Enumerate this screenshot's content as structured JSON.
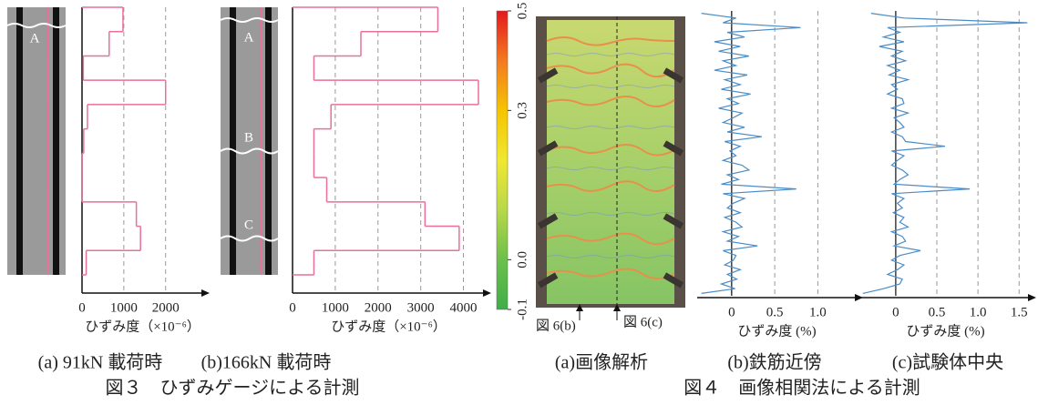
{
  "chart_data": [
    {
      "type": "step",
      "subtitle": "(a)  91kN 載荷時",
      "xlabel": "ひずみ度（×10⁻⁶）",
      "color": "#e8709a",
      "values": [
        980,
        650,
        30,
        2000,
        130,
        40,
        0,
        0,
        1300,
        1400,
        100
      ],
      "xlim": [
        0,
        2900
      ],
      "xticks": [
        0,
        1000,
        2000
      ],
      "grid": true
    },
    {
      "type": "step",
      "subtitle": "(b)166kN 載荷時",
      "xlabel": "ひずみ度（×10⁻⁶）",
      "color": "#e8709a",
      "values": [
        3400,
        1600,
        500,
        4350,
        900,
        500,
        500,
        800,
        3100,
        3900,
        500
      ],
      "xlim": [
        0,
        4500
      ],
      "xticks": [
        0,
        1000,
        2000,
        3000,
        4000
      ],
      "grid": true
    },
    {
      "type": "colorbar",
      "subtitle": "(a)画像解析",
      "colors": [
        "#e31a1c",
        "#f47a20",
        "#f5c400",
        "#f0e830",
        "#b8d84a",
        "#6cc04a",
        "#3fae49"
      ],
      "ylim": [
        -0.1,
        0.5
      ],
      "yticks": [
        -0.1,
        {
          "value": 0,
          "label": "0.0"
        },
        0.3,
        0.5
      ]
    },
    {
      "type": "profile",
      "subtitle": "(b)鉄筋近傍",
      "xlabel": "ひずみ度 (%)",
      "color": "#4a8cc8",
      "values": [
        -0.35,
        0.05,
        -0.1,
        0.8,
        -0.05,
        0.15,
        -0.2,
        0.1,
        -0.15,
        0.2,
        -0.1,
        0.05,
        -0.2,
        0.18,
        -0.08,
        0.1,
        -0.12,
        0.22,
        -0.05,
        0.08,
        -0.15,
        0.12,
        0.02,
        -0.1,
        0.15,
        -0.05,
        0.35,
        -0.08,
        0.1,
        -0.02,
        0.05,
        -0.1,
        0.12,
        0.2,
        -0.05,
        0.08,
        -0.12,
        0.75,
        -0.1,
        0.15,
        0.02,
        -0.05,
        0.1,
        -0.08,
        0.05,
        0.12,
        -0.1,
        0.08,
        -0.05,
        0.3,
        -0.1,
        0.05,
        0.02,
        -0.08,
        0.1,
        -0.05,
        0.06,
        -0.12,
        0.04,
        -0.35
      ],
      "xlim": [
        -0.4,
        1.45
      ],
      "xticks": [
        0,
        0.5,
        {
          "value": 1,
          "label": "1.0"
        }
      ],
      "grid": true
    },
    {
      "type": "profile",
      "subtitle": "(c)試験体中央",
      "xlabel": "ひずみ度 (%)",
      "color": "#4a8cc8",
      "values": [
        -0.3,
        0.1,
        1.6,
        -0.1,
        0.05,
        -0.15,
        0.1,
        -0.2,
        0.08,
        -0.05,
        0.12,
        -0.1,
        0.05,
        -0.08,
        0.15,
        -0.05,
        0.02,
        -0.1,
        0.08,
        0.1,
        -0.05,
        0.15,
        -0.02,
        0.05,
        0.1,
        -0.05,
        0.08,
        0.12,
        0.6,
        -0.05,
        0.1,
        0.02,
        -0.05,
        0.08,
        0.15,
        0.05,
        -0.02,
        0.9,
        -0.05,
        0.1,
        0.02,
        0.08,
        -0.03,
        0.1,
        0.05,
        0.15,
        -0.05,
        0.08,
        0.12,
        -0.02,
        0.3,
        0.05,
        -0.05,
        0.1,
        0.02,
        -0.1,
        0.08,
        0.05,
        -0.15,
        -0.4
      ],
      "xlim": [
        -0.42,
        1.63
      ],
      "xticks": [
        0,
        0.5,
        {
          "value": 1,
          "label": "1.0"
        },
        1.5
      ],
      "grid": true
    }
  ],
  "gauge_a": {
    "labels": [
      "A"
    ]
  },
  "gauge_b": {
    "labels": [
      "A",
      "B",
      "C"
    ]
  },
  "photo": {
    "labels": [
      "図 6(b)",
      "図 6(c)"
    ]
  },
  "figure3": {
    "caption": "図３　ひずみゲージによる計測"
  },
  "figure4": {
    "caption": "図４　画像相関法による計測"
  }
}
